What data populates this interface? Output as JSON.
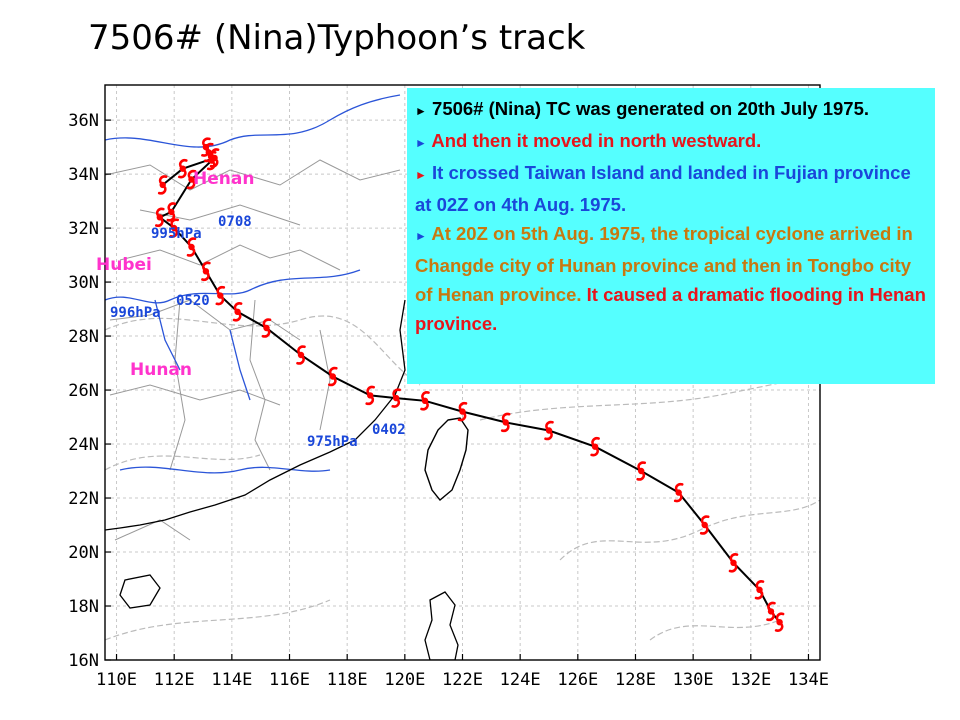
{
  "title": "7506# (Nina)Typhoon’s track",
  "info": {
    "bullet": "►",
    "p1": "7506# (Nina) TC was generated on 20th July 1975.",
    "p2": "And then it moved in north westward.",
    "p3": "It crossed Taiwan Island and landed in Fujian province at 02Z on 4th Aug. 1975.",
    "p4_orange": "At 20Z on 5th Aug. 1975, the tropical cyclone arrived in Changde city of Hunan province and then in Tongbo city of Henan province.",
    "p4_red": "It caused a dramatic flooding in Henan province."
  },
  "colors": {
    "track": "#000000",
    "typhoon_symbol": "#ff0000",
    "annotation": "#1a47d9",
    "province_label": "#ff33cc",
    "info_background": "#55ffff",
    "coast": "#000000",
    "rivers": "#2b55d8",
    "borders": "#888888"
  },
  "map": {
    "lat_labels": [
      "36N",
      "34N",
      "32N",
      "30N",
      "28N",
      "26N",
      "24N",
      "22N",
      "20N",
      "18N",
      "16N"
    ],
    "lon_labels": [
      "110E",
      "112E",
      "114E",
      "116E",
      "118E",
      "120E",
      "122E",
      "124E",
      "126E",
      "128E",
      "130E",
      "132E",
      "134E"
    ],
    "provinces": [
      "Henan",
      "Hubei",
      "Hunan"
    ],
    "annotations": {
      "date_0708": "0708",
      "pres_995": "995hPa",
      "date_0520": "0520",
      "pres_996": "996hPa",
      "date_0402": "0402",
      "pres_975": "975hPa"
    },
    "track_points": [
      [
        133.0,
        17.4
      ],
      [
        132.7,
        17.8
      ],
      [
        132.3,
        18.6
      ],
      [
        131.4,
        19.6
      ],
      [
        130.4,
        21.0
      ],
      [
        129.5,
        22.2
      ],
      [
        128.2,
        23.0
      ],
      [
        126.6,
        23.9
      ],
      [
        125.0,
        24.5
      ],
      [
        123.5,
        24.8
      ],
      [
        122.0,
        25.2
      ],
      [
        120.7,
        25.6
      ],
      [
        119.7,
        25.7
      ],
      [
        118.8,
        25.8
      ],
      [
        117.5,
        26.5
      ],
      [
        116.4,
        27.3
      ],
      [
        115.2,
        28.3
      ],
      [
        114.2,
        28.9
      ],
      [
        113.6,
        29.5
      ],
      [
        113.1,
        30.4
      ],
      [
        112.6,
        31.3
      ],
      [
        112.0,
        32.0
      ],
      [
        111.5,
        32.4
      ],
      [
        111.9,
        32.6
      ],
      [
        112.6,
        33.8
      ],
      [
        113.3,
        34.5
      ],
      [
        113.2,
        34.8
      ],
      [
        113.1,
        35.0
      ],
      [
        113.4,
        34.6
      ],
      [
        112.3,
        34.2
      ],
      [
        111.6,
        33.6
      ]
    ]
  }
}
